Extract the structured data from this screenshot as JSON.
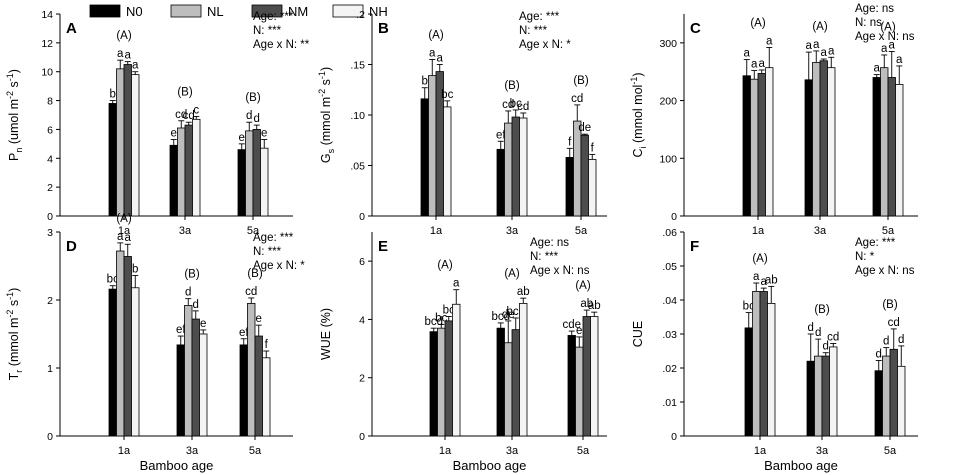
{
  "legend": [
    {
      "label": "N0",
      "color": "#000000"
    },
    {
      "label": "NL",
      "color": "#bdbdbd"
    },
    {
      "label": "NM",
      "color": "#4d4d4d"
    },
    {
      "label": "NH",
      "color": "#f4f4f4"
    }
  ],
  "chart_data": [
    {
      "type": "bar",
      "letter": "A",
      "ylabel": "Pn (umol m-2 s-1)",
      "ylabel_main": "P",
      "ylabel_sub": "n",
      "ylabel_rest": " (umol m",
      "ylabel_sup1": "-2",
      "ylabel_mid": " s",
      "ylabel_sup2": "-1",
      "ylabel_end": ")",
      "xlabel": "",
      "categories": [
        "1a",
        "3a",
        "5a"
      ],
      "ylim": [
        0,
        14
      ],
      "yticks": [
        "0",
        "2",
        "4",
        "6",
        "8",
        "10",
        "12",
        "14"
      ],
      "ytick_values": [
        0,
        2,
        4,
        6,
        8,
        10,
        12,
        14
      ],
      "series": [
        {
          "name": "N0",
          "values": [
            7.8,
            4.9,
            4.6
          ],
          "errors": [
            0.2,
            0.4,
            0.4
          ],
          "letters": [
            "b",
            "e",
            "e"
          ]
        },
        {
          "name": "NL",
          "values": [
            10.2,
            6.1,
            5.9
          ],
          "errors": [
            0.6,
            0.5,
            0.6
          ],
          "letters": [
            "a",
            "cd",
            "d"
          ]
        },
        {
          "name": "NM",
          "values": [
            10.5,
            6.3,
            6.0
          ],
          "errors": [
            0.2,
            0.2,
            0.3
          ],
          "letters": [
            "a",
            "cd",
            "d"
          ]
        },
        {
          "name": "NH",
          "values": [
            9.8,
            6.7,
            4.7
          ],
          "errors": [
            0.2,
            0.2,
            0.6
          ],
          "letters": [
            "a",
            "c",
            "e"
          ]
        }
      ],
      "group_labels": [
        "(A)",
        "(B)",
        "(B)"
      ],
      "stats": [
        "Age: ***",
        "N: ***",
        "Age x N: **"
      ]
    },
    {
      "type": "bar",
      "letter": "B",
      "ylabel": "Gs (mmol m-2 s-1)",
      "ylabel_main": "G",
      "ylabel_sub": "s",
      "ylabel_rest": " (mmol m",
      "ylabel_sup1": "-2",
      "ylabel_mid": " s",
      "ylabel_sup2": "-1",
      "ylabel_end": ")",
      "xlabel": "",
      "categories": [
        "1a",
        "3a",
        "5a"
      ],
      "ylim": [
        0,
        0.2
      ],
      "yticks": [
        "0",
        ".05",
        ".10",
        ".15",
        ".2"
      ],
      "ytick_values": [
        0,
        0.05,
        0.1,
        0.15,
        0.2
      ],
      "series": [
        {
          "name": "N0",
          "values": [
            0.116,
            0.066,
            0.058
          ],
          "errors": [
            0.011,
            0.008,
            0.009
          ],
          "letters": [
            "b",
            "ef",
            "f"
          ]
        },
        {
          "name": "NL",
          "values": [
            0.139,
            0.092,
            0.094
          ],
          "errors": [
            0.016,
            0.012,
            0.016
          ],
          "letters": [
            "a",
            "cd",
            "cd"
          ]
        },
        {
          "name": "NM",
          "values": [
            0.143,
            0.098,
            0.08
          ],
          "errors": [
            0.007,
            0.007,
            0.001
          ],
          "letters": [
            "a",
            "bc",
            "de"
          ]
        },
        {
          "name": "NH",
          "values": [
            0.108,
            0.097,
            0.056
          ],
          "errors": [
            0.006,
            0.005,
            0.005
          ],
          "letters": [
            "bc",
            "cd",
            "f"
          ]
        }
      ],
      "group_labels": [
        "(A)",
        "(B)",
        "(B)"
      ],
      "stats": [
        "Age: ***",
        "N: ***",
        "Age x N: *"
      ]
    },
    {
      "type": "bar",
      "letter": "C",
      "ylabel": "Ci (mmol mol-1)",
      "ylabel_main": "C",
      "ylabel_sub": "i",
      "ylabel_rest": " (mmol mol",
      "ylabel_sup1": "-1",
      "ylabel_mid": "",
      "ylabel_sup2": "",
      "ylabel_end": ")",
      "xlabel": "",
      "categories": [
        "1a",
        "3a",
        "5a"
      ],
      "ylim": [
        0,
        350
      ],
      "yticks": [
        "0",
        "100",
        "200",
        "300"
      ],
      "ytick_values": [
        0,
        100,
        200,
        300
      ],
      "series": [
        {
          "name": "N0",
          "values": [
            243,
            236,
            240
          ],
          "errors": [
            28,
            48,
            5
          ],
          "letters": [
            "a",
            "a",
            "a"
          ]
        },
        {
          "name": "NL",
          "values": [
            237,
            266,
            257
          ],
          "errors": [
            15,
            20,
            22
          ],
          "letters": [
            "a",
            "a",
            "a"
          ]
        },
        {
          "name": "NM",
          "values": [
            247,
            269,
            240
          ],
          "errors": [
            6,
            3,
            45
          ],
          "letters": [
            "a",
            "a",
            "a"
          ]
        },
        {
          "name": "NH",
          "values": [
            257,
            257,
            228
          ],
          "errors": [
            35,
            18,
            32
          ],
          "letters": [
            "a",
            "a",
            "a"
          ]
        }
      ],
      "group_labels": [
        "(A)",
        "(A)",
        "(A)"
      ],
      "stats": [
        "Age: ns",
        "N: ns",
        "Age x N: ns"
      ]
    },
    {
      "type": "bar",
      "letter": "D",
      "ylabel": "Tr (mmol m-2 s-1)",
      "ylabel_main": "T",
      "ylabel_sub": "r",
      "ylabel_rest": " (mmol m",
      "ylabel_sup1": "-2",
      "ylabel_mid": " s",
      "ylabel_sup2": "-1",
      "ylabel_end": ")",
      "xlabel": "Bamboo age",
      "categories": [
        "1a",
        "3a",
        "5a"
      ],
      "ylim": [
        0,
        3
      ],
      "yticks": [
        "0",
        "1",
        "2",
        "3"
      ],
      "ytick_values": [
        0,
        1,
        2,
        3
      ],
      "series": [
        {
          "name": "N0",
          "values": [
            2.16,
            1.34,
            1.34
          ],
          "errors": [
            0.05,
            0.13,
            0.09
          ],
          "letters": [
            "bc",
            "ef",
            "ef"
          ]
        },
        {
          "name": "NL",
          "values": [
            2.72,
            1.92,
            1.95
          ],
          "errors": [
            0.12,
            0.1,
            0.08
          ],
          "letters": [
            "a",
            "d",
            "cd"
          ]
        },
        {
          "name": "NM",
          "values": [
            2.64,
            1.72,
            1.47
          ],
          "errors": [
            0.18,
            0.12,
            0.16
          ],
          "letters": [
            "a",
            "d",
            "e"
          ]
        },
        {
          "name": "NH",
          "values": [
            2.18,
            1.5,
            1.15
          ],
          "errors": [
            0.18,
            0.06,
            0.1
          ],
          "letters": [
            "b",
            "e",
            "f"
          ]
        }
      ],
      "group_labels": [
        "(A)",
        "(B)",
        "(B)"
      ],
      "stats": [
        "Age: ***",
        "N: ***",
        "Age x N: *"
      ]
    },
    {
      "type": "bar",
      "letter": "E",
      "ylabel": "WUE (%)",
      "ylabel_main": "WUE (%)",
      "ylabel_sub": "",
      "ylabel_rest": "",
      "ylabel_sup1": "",
      "ylabel_mid": "",
      "ylabel_sup2": "",
      "ylabel_end": "",
      "xlabel": "Bamboo age",
      "categories": [
        "1a",
        "3a",
        "5a"
      ],
      "ylim": [
        0,
        7
      ],
      "yticks": [
        "0",
        "2",
        "4",
        "6"
      ],
      "ytick_values": [
        0,
        2,
        4,
        6
      ],
      "series": [
        {
          "name": "N0",
          "values": [
            3.58,
            3.7,
            3.45
          ],
          "errors": [
            0.12,
            0.18,
            0.15
          ],
          "letters": [
            "bcd",
            "bcd",
            "cde"
          ]
        },
        {
          "name": "NL",
          "values": [
            3.7,
            3.2,
            3.05
          ],
          "errors": [
            0.13,
            0.75,
            0.35
          ],
          "letters": [
            "bc",
            "de",
            "e"
          ]
        },
        {
          "name": "NM",
          "values": [
            3.95,
            3.65,
            4.1
          ],
          "errors": [
            0.15,
            0.4,
            0.22
          ],
          "letters": [
            "bc",
            "bcd",
            "ab"
          ]
        },
        {
          "name": "NH",
          "values": [
            4.52,
            4.55,
            4.1
          ],
          "errors": [
            0.5,
            0.18,
            0.15
          ],
          "letters": [
            "a",
            "ab",
            "ab"
          ]
        }
      ],
      "group_labels": [
        "(A)",
        "(A)",
        "(A)"
      ],
      "stats": [
        "Age: ns",
        "N: ***",
        "Age x N: ns"
      ]
    },
    {
      "type": "bar",
      "letter": "F",
      "ylabel": "CUE",
      "ylabel_main": "CUE",
      "ylabel_sub": "",
      "ylabel_rest": "",
      "ylabel_sup1": "",
      "ylabel_mid": "",
      "ylabel_sup2": "",
      "ylabel_end": "",
      "xlabel": "Bamboo age",
      "categories": [
        "1a",
        "3a",
        "5a"
      ],
      "ylim": [
        0,
        0.06
      ],
      "yticks": [
        "0",
        ".01",
        ".02",
        ".03",
        ".04",
        ".05",
        ".06"
      ],
      "ytick_values": [
        0,
        0.01,
        0.02,
        0.03,
        0.04,
        0.05,
        0.06
      ],
      "series": [
        {
          "name": "N0",
          "values": [
            0.0318,
            0.022,
            0.0192
          ],
          "errors": [
            0.0045,
            0.008,
            0.003
          ],
          "letters": [
            "bc",
            "d",
            "d"
          ]
        },
        {
          "name": "NL",
          "values": [
            0.0425,
            0.0235,
            0.0235
          ],
          "errors": [
            0.0025,
            0.005,
            0.0025
          ],
          "letters": [
            "a",
            "d",
            "d"
          ]
        },
        {
          "name": "NM",
          "values": [
            0.0425,
            0.0235,
            0.0255
          ],
          "errors": [
            0.001,
            0.001,
            0.006
          ],
          "letters": [
            "a",
            "d",
            "cd"
          ]
        },
        {
          "name": "NH",
          "values": [
            0.039,
            0.0262,
            0.0205
          ],
          "errors": [
            0.005,
            0.001,
            0.006
          ],
          "letters": [
            "ab",
            "cd",
            "d"
          ]
        }
      ],
      "group_labels": [
        "(A)",
        "(B)",
        "(B)"
      ],
      "stats": [
        "Age: ***",
        "N: *",
        "Age x N: ns"
      ]
    }
  ]
}
